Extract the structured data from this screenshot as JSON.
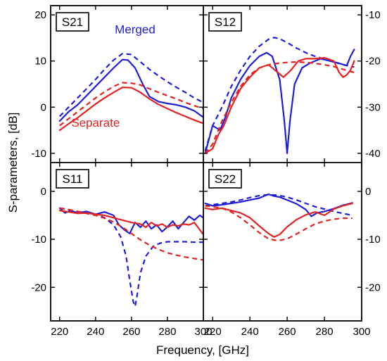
{
  "colors": {
    "merged": "#1f1fd6",
    "separate": "#e52222",
    "axis": "#000000"
  },
  "chart_data": {
    "type": "line",
    "xlabel": "Frequency, [GHz]",
    "ylabel": "S-parameters, [dB]",
    "xlim": [
      215,
      300
    ],
    "x_ticks": [
      220,
      240,
      260,
      280,
      300
    ],
    "bottom_right_x_ticks": [
      220,
      240,
      260,
      280,
      300
    ],
    "left_y_ticks_top": [
      20,
      10,
      0,
      -10
    ],
    "right_y_ticks_top": [
      -10,
      -20,
      -30,
      -40
    ],
    "left_y_ticks_bottom": [
      0,
      -10,
      -20
    ],
    "right_y_ticks_bottom": [
      0,
      -10,
      -20
    ],
    "panels": [
      {
        "id": "s21",
        "label": "S21",
        "ylim": [
          -12,
          22
        ],
        "annotations": [
          {
            "text": "Merged",
            "x": 262,
            "y": 16,
            "color_key": "merged"
          },
          {
            "text": "Separate",
            "x": 240,
            "y": -4.2,
            "color_key": "separate"
          }
        ],
        "series": [
          {
            "style": "solid",
            "color_key": "merged",
            "x": [
              220,
              225,
              230,
              235,
              240,
              245,
              250,
              255,
              258,
              262,
              266,
              270,
              275,
              280,
              285,
              290,
              295,
              300
            ],
            "y": [
              -3,
              -1,
              0.5,
              2.5,
              4.5,
              6.5,
              8.5,
              10.3,
              10.2,
              8.5,
              5.2,
              2.3,
              1.2,
              0.8,
              0.5,
              0,
              -0.8,
              -2.2
            ]
          },
          {
            "style": "dashed",
            "color_key": "merged",
            "x": [
              220,
              225,
              230,
              235,
              240,
              245,
              250,
              255,
              260,
              265,
              270,
              275,
              280,
              285,
              290,
              295,
              300
            ],
            "y": [
              -2,
              0,
              2,
              4,
              6,
              8.2,
              10.2,
              11.6,
              11.4,
              9.8,
              8.2,
              6.8,
              5.5,
              4.3,
              3.2,
              2,
              1
            ]
          },
          {
            "style": "solid",
            "color_key": "separate",
            "x": [
              220,
              225,
              230,
              235,
              240,
              245,
              250,
              255,
              260,
              265,
              270,
              275,
              280,
              285,
              290,
              295,
              300
            ],
            "y": [
              -5,
              -3.6,
              -2.3,
              -0.8,
              0.7,
              2,
              3.2,
              4.3,
              4.2,
              3.2,
              1.8,
              0.6,
              -0.3,
              -1.2,
              -2,
              -2.8,
              -3.5
            ]
          },
          {
            "style": "dashed",
            "color_key": "separate",
            "x": [
              220,
              225,
              230,
              235,
              240,
              245,
              250,
              255,
              260,
              265,
              270,
              275,
              280,
              285,
              290,
              295,
              300
            ],
            "y": [
              -4,
              -2.5,
              -1,
              0.5,
              2,
              3.3,
              4.5,
              5.3,
              5.2,
              4.8,
              4,
              3.2,
              2.5,
              1.8,
              1,
              0.3,
              -0.3
            ]
          }
        ]
      },
      {
        "id": "s12",
        "label": "S12",
        "ylim": [
          -42,
          -8
        ],
        "series": [
          {
            "style": "solid",
            "color_key": "merged",
            "x": [
              216,
              218,
              220,
              224,
              227,
              230,
              235,
              240,
              245,
              249,
              252,
              256,
              258.5,
              260,
              261.5,
              264,
              268,
              272,
              278,
              283,
              288,
              292,
              294,
              296
            ],
            "y": [
              -40,
              -37,
              -34,
              -35,
              -32,
              -28,
              -24,
              -21,
              -19,
              -18.2,
              -19,
              -24,
              -33,
              -40,
              -33,
              -25,
              -21.5,
              -20.5,
              -19.5,
              -20,
              -20.5,
              -21,
              -19,
              -17.5
            ]
          },
          {
            "style": "dashed",
            "color_key": "merged",
            "x": [
              216,
              220,
              225,
              230,
              235,
              240,
              245,
              250,
              253,
              256,
              260,
              265,
              270,
              275,
              280,
              285,
              290,
              296
            ],
            "y": [
              -39.5,
              -34,
              -30,
              -25.5,
              -22,
              -19,
              -16.8,
              -15.3,
              -14.9,
              -15.2,
              -16,
              -17.2,
              -18.2,
              -19,
              -19.6,
              -20.2,
              -20.8,
              -21.3
            ]
          },
          {
            "style": "solid",
            "color_key": "separate",
            "x": [
              216,
              220,
              223,
              226,
              230,
              235,
              240,
              245,
              250,
              255,
              258,
              262,
              266,
              270,
              275,
              280,
              285,
              288,
              290,
              292,
              294,
              296
            ],
            "y": [
              -40,
              -39,
              -36,
              -34,
              -30,
              -26,
              -23.5,
              -21.5,
              -20.8,
              -22.5,
              -23.5,
              -22,
              -20,
              -19.5,
              -19.5,
              -19.3,
              -20,
              -22.5,
              -23.5,
              -23,
              -22,
              -20
            ]
          },
          {
            "style": "dashed",
            "color_key": "separate",
            "x": [
              216,
              220,
              225,
              230,
              235,
              240,
              245,
              250,
              255,
              260,
              265,
              270,
              275,
              280,
              285,
              290,
              296
            ],
            "y": [
              -40,
              -38,
              -33,
              -29,
              -25.5,
              -23,
              -21.5,
              -20.8,
              -20.5,
              -20.3,
              -20.2,
              -20.3,
              -20.5,
              -20.8,
              -21.2,
              -21.8,
              -22.5
            ]
          }
        ]
      },
      {
        "id": "s11",
        "label": "S11",
        "ylim": [
          -27,
          6
        ],
        "series": [
          {
            "style": "solid",
            "color_key": "merged",
            "x": [
              220,
              223,
              226,
              230,
              235,
              240,
              245,
              250,
              253,
              256,
              259,
              262,
              265,
              268,
              271,
              274,
              277,
              280,
              283,
              286,
              289,
              292,
              295,
              298,
              300
            ],
            "y": [
              -3.5,
              -4.5,
              -4,
              -4.5,
              -4.2,
              -4.8,
              -4.3,
              -5,
              -7,
              -8,
              -8.8,
              -6.5,
              -7.5,
              -6.2,
              -7.8,
              -7,
              -8.4,
              -7.4,
              -6.2,
              -7.8,
              -6.5,
              -5.2,
              -6,
              -5,
              -5.5
            ]
          },
          {
            "style": "dashed",
            "color_key": "merged",
            "x": [
              220,
              225,
              230,
              235,
              240,
              245,
              250,
              254,
              257,
              259,
              261,
              262,
              263,
              265,
              268,
              272,
              276,
              280,
              285,
              290,
              295,
              300
            ],
            "y": [
              -3.5,
              -3.8,
              -4.2,
              -4.5,
              -4.8,
              -5.5,
              -7,
              -9.5,
              -13.5,
              -18.5,
              -23,
              -24,
              -22,
              -17,
              -13.5,
              -11.5,
              -10.8,
              -10.5,
              -10.5,
              -10.5,
              -10.6,
              -10.6
            ]
          },
          {
            "style": "solid",
            "color_key": "separate",
            "x": [
              220,
              225,
              230,
              235,
              240,
              245,
              250,
              255,
              260,
              265,
              268,
              271,
              274,
              277,
              280,
              283,
              286,
              289,
              292,
              295,
              298,
              300
            ],
            "y": [
              -4,
              -4.3,
              -4.6,
              -4.5,
              -4.8,
              -5,
              -5.5,
              -6,
              -6.5,
              -6.8,
              -7.5,
              -6.5,
              -7.2,
              -6.8,
              -7.5,
              -7,
              -7.2,
              -6.8,
              -7,
              -6.5,
              -8,
              -9
            ]
          },
          {
            "style": "dashed",
            "color_key": "separate",
            "x": [
              220,
              225,
              230,
              235,
              240,
              245,
              250,
              255,
              260,
              265,
              270,
              275,
              280,
              285,
              290,
              295,
              300
            ],
            "y": [
              -3.5,
              -3.8,
              -4.2,
              -4.6,
              -5,
              -5.6,
              -6.4,
              -7.5,
              -8.8,
              -10.1,
              -11.2,
              -12.1,
              -12.8,
              -13.3,
              -13.7,
              -14,
              -14.3
            ]
          }
        ]
      },
      {
        "id": "s22",
        "label": "S22",
        "ylim": [
          -27,
          6
        ],
        "series": [
          {
            "style": "solid",
            "color_key": "merged",
            "x": [
              216,
              220,
              225,
              230,
              235,
              240,
              245,
              250,
              253,
              256,
              260,
              265,
              270,
              273,
              276,
              280,
              285,
              290,
              295
            ],
            "y": [
              -2.5,
              -3,
              -2.8,
              -2.5,
              -2.2,
              -1.8,
              -1.4,
              -0.6,
              -1,
              -1.2,
              -1.8,
              -2.6,
              -3.8,
              -5.2,
              -4.5,
              -4.2,
              -3.6,
              -2.9,
              -2.4
            ]
          },
          {
            "style": "dashed",
            "color_key": "merged",
            "x": [
              216,
              220,
              225,
              230,
              235,
              240,
              245,
              250,
              255,
              260,
              265,
              270,
              275,
              280,
              285,
              290,
              295
            ],
            "y": [
              -3,
              -2.8,
              -2.5,
              -2.2,
              -1.8,
              -1.3,
              -0.9,
              -0.7,
              -0.8,
              -1.2,
              -1.8,
              -2.5,
              -3.2,
              -3.7,
              -4.2,
              -4.6,
              -5
            ]
          },
          {
            "style": "solid",
            "color_key": "separate",
            "x": [
              216,
              220,
              225,
              230,
              235,
              240,
              245,
              250,
              253,
              256,
              260,
              265,
              270,
              275,
              280,
              285,
              290,
              295
            ],
            "y": [
              -3.5,
              -3.8,
              -3.5,
              -4,
              -4.5,
              -5.5,
              -7.2,
              -8.8,
              -9.5,
              -9,
              -7.4,
              -5.9,
              -4.9,
              -4.3,
              -5,
              -3.7,
              -3,
              -2.5
            ]
          },
          {
            "style": "dashed",
            "color_key": "separate",
            "x": [
              216,
              220,
              225,
              230,
              235,
              240,
              245,
              250,
              255,
              260,
              265,
              270,
              275,
              280,
              285,
              290,
              295
            ],
            "y": [
              -3,
              -3.2,
              -3.5,
              -4.3,
              -5.5,
              -7,
              -8.6,
              -9.9,
              -10.3,
              -9.9,
              -8.9,
              -7.8,
              -6.8,
              -6.2,
              -5.8,
              -5.6,
              -5.6
            ]
          }
        ]
      }
    ]
  }
}
